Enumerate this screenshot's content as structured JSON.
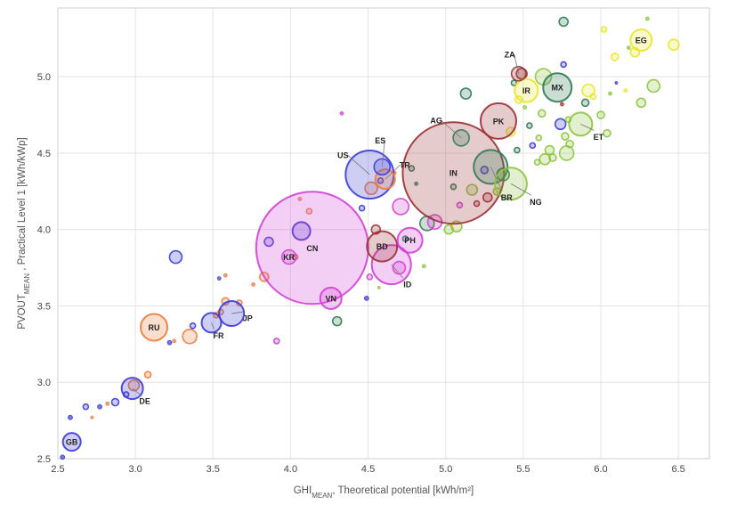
{
  "chart_data": {
    "type": "scatter",
    "title": "",
    "xlabel": {
      "prefix": "GHI",
      "sub": "MEAN",
      "suffix": ", Theoretical potential  [kWh/m²]"
    },
    "ylabel": {
      "prefix": "PVOUT",
      "sub": "MEAN",
      "suffix": " , Practical Level 1  [kWh/kWp]"
    },
    "xlim": [
      2.5,
      6.7
    ],
    "ylim": [
      2.5,
      5.45
    ],
    "xticks": [
      "2.5",
      "3.0",
      "3.5",
      "4.0",
      "4.5",
      "5.0",
      "5.5",
      "6.0",
      "6.5"
    ],
    "yticks": [
      "2.5",
      "3.0",
      "3.5",
      "4.0",
      "4.5",
      "5.0"
    ],
    "grid": true,
    "colors": {
      "blue": "#3b3bd6",
      "orange": "#ee7b3c",
      "magenta": "#d23fd6",
      "darkred": "#9b2f35",
      "darkgreen": "#2f7a55",
      "lightgreen": "#8cc43f",
      "yellow": "#e9e62a"
    },
    "labeled_points": [
      {
        "code": "GB",
        "x": 2.59,
        "y": 2.61,
        "r": 10,
        "color": "blue",
        "label": "GB"
      },
      {
        "code": "DE",
        "x": 2.98,
        "y": 2.96,
        "r": 12,
        "color": "blue",
        "label": "DE"
      },
      {
        "code": "RU",
        "x": 3.12,
        "y": 3.36,
        "r": 15,
        "color": "orange",
        "label": "RU"
      },
      {
        "code": "FR",
        "x": 3.49,
        "y": 3.39,
        "r": 11,
        "color": "blue",
        "label": "FR"
      },
      {
        "code": "JP",
        "x": 3.62,
        "y": 3.45,
        "r": 14,
        "color": "blue",
        "label": "JP"
      },
      {
        "code": "CN",
        "x": 4.14,
        "y": 3.88,
        "r": 63,
        "color": "magenta",
        "label": "CN"
      },
      {
        "code": "KR",
        "x": 3.99,
        "y": 3.82,
        "r": 8,
        "color": "magenta",
        "label": "KR"
      },
      {
        "code": "VN",
        "x": 4.26,
        "y": 3.55,
        "r": 12,
        "color": "magenta",
        "label": "VN"
      },
      {
        "code": "US",
        "x": 4.51,
        "y": 4.36,
        "r": 27,
        "color": "blue",
        "label": "US"
      },
      {
        "code": "ES",
        "x": 4.59,
        "y": 4.41,
        "r": 9,
        "color": "blue",
        "label": "ES"
      },
      {
        "code": "TR",
        "x": 4.61,
        "y": 4.33,
        "r": 11,
        "color": "orange",
        "label": "TR"
      },
      {
        "code": "BD",
        "x": 4.59,
        "y": 3.89,
        "r": 17,
        "color": "darkred",
        "label": "BD"
      },
      {
        "code": "PH",
        "x": 4.77,
        "y": 3.93,
        "r": 14,
        "color": "magenta",
        "label": "PH"
      },
      {
        "code": "ID",
        "x": 4.65,
        "y": 3.77,
        "r": 22,
        "color": "magenta",
        "label": "ID"
      },
      {
        "code": "IN",
        "x": 5.05,
        "y": 4.37,
        "r": 57,
        "color": "darkred",
        "label": "IN"
      },
      {
        "code": "AG",
        "x": 5.1,
        "y": 4.6,
        "r": 9,
        "color": "darkgreen",
        "label": "AG"
      },
      {
        "code": "PK",
        "x": 5.34,
        "y": 4.71,
        "r": 20,
        "color": "darkred",
        "label": "PK"
      },
      {
        "code": "BR",
        "x": 5.29,
        "y": 4.41,
        "r": 19,
        "color": "darkgreen",
        "label": "BR"
      },
      {
        "code": "NG",
        "x": 5.42,
        "y": 4.3,
        "r": 18,
        "color": "lightgreen",
        "label": "NG"
      },
      {
        "code": "ZA",
        "x": 5.47,
        "y": 5.02,
        "r": 8,
        "color": "darkred",
        "label": "ZA"
      },
      {
        "code": "IR",
        "x": 5.52,
        "y": 4.91,
        "r": 13,
        "color": "yellow",
        "label": "IR"
      },
      {
        "code": "MX",
        "x": 5.72,
        "y": 4.93,
        "r": 16,
        "color": "darkgreen",
        "label": "MX"
      },
      {
        "code": "ET",
        "x": 5.87,
        "y": 4.69,
        "r": 13,
        "color": "lightgreen",
        "label": "ET"
      },
      {
        "code": "EG",
        "x": 6.26,
        "y": 5.24,
        "r": 12,
        "color": "yellow",
        "label": "EG"
      }
    ],
    "points": [
      {
        "x": 2.53,
        "y": 2.51,
        "r": 2.5,
        "color": "blue"
      },
      {
        "x": 2.58,
        "y": 2.77,
        "r": 2.5,
        "color": "blue"
      },
      {
        "x": 2.68,
        "y": 2.84,
        "r": 3,
        "color": "blue"
      },
      {
        "x": 2.72,
        "y": 2.77,
        "r": 1.5,
        "color": "orange"
      },
      {
        "x": 2.77,
        "y": 2.84,
        "r": 2.5,
        "color": "blue"
      },
      {
        "x": 2.82,
        "y": 2.86,
        "r": 2,
        "color": "orange"
      },
      {
        "x": 2.87,
        "y": 2.87,
        "r": 4,
        "color": "blue"
      },
      {
        "x": 2.94,
        "y": 2.92,
        "r": 3,
        "color": "blue"
      },
      {
        "x": 2.99,
        "y": 2.98,
        "r": 6,
        "color": "orange"
      },
      {
        "x": 3.08,
        "y": 3.05,
        "r": 3.5,
        "color": "orange"
      },
      {
        "x": 3.22,
        "y": 3.26,
        "r": 2.5,
        "color": "blue"
      },
      {
        "x": 3.25,
        "y": 3.27,
        "r": 2,
        "color": "orange"
      },
      {
        "x": 3.26,
        "y": 3.82,
        "r": 7,
        "color": "blue"
      },
      {
        "x": 3.35,
        "y": 3.3,
        "r": 8,
        "color": "orange"
      },
      {
        "x": 3.37,
        "y": 3.37,
        "r": 3,
        "color": "blue"
      },
      {
        "x": 3.52,
        "y": 3.44,
        "r": 3,
        "color": "orange"
      },
      {
        "x": 3.55,
        "y": 3.46,
        "r": 3,
        "color": "orange"
      },
      {
        "x": 3.54,
        "y": 3.68,
        "r": 2,
        "color": "blue"
      },
      {
        "x": 3.58,
        "y": 3.53,
        "r": 4,
        "color": "orange"
      },
      {
        "x": 3.58,
        "y": 3.7,
        "r": 2,
        "color": "orange"
      },
      {
        "x": 3.67,
        "y": 3.52,
        "r": 3,
        "color": "orange"
      },
      {
        "x": 3.76,
        "y": 3.64,
        "r": 2,
        "color": "orange"
      },
      {
        "x": 3.83,
        "y": 3.69,
        "r": 5,
        "color": "orange"
      },
      {
        "x": 3.86,
        "y": 3.92,
        "r": 5,
        "color": "blue"
      },
      {
        "x": 3.91,
        "y": 3.27,
        "r": 3,
        "color": "magenta"
      },
      {
        "x": 4.07,
        "y": 3.99,
        "r": 10,
        "color": "blue"
      },
      {
        "x": 4.03,
        "y": 3.82,
        "r": 3,
        "color": "orange"
      },
      {
        "x": 4.06,
        "y": 4.2,
        "r": 2,
        "color": "orange"
      },
      {
        "x": 4.12,
        "y": 4.12,
        "r": 3,
        "color": "orange"
      },
      {
        "x": 4.3,
        "y": 3.4,
        "r": 5,
        "color": "darkgreen"
      },
      {
        "x": 4.33,
        "y": 4.76,
        "r": 2,
        "color": "magenta"
      },
      {
        "x": 4.46,
        "y": 4.14,
        "r": 3,
        "color": "blue"
      },
      {
        "x": 4.49,
        "y": 3.55,
        "r": 2.5,
        "color": "blue"
      },
      {
        "x": 4.51,
        "y": 3.69,
        "r": 3,
        "color": "magenta"
      },
      {
        "x": 4.52,
        "y": 4.27,
        "r": 7,
        "color": "orange"
      },
      {
        "x": 4.55,
        "y": 4.0,
        "r": 5,
        "color": "darkred"
      },
      {
        "x": 4.57,
        "y": 3.62,
        "r": 1.5,
        "color": "lightgreen"
      },
      {
        "x": 4.58,
        "y": 4.32,
        "r": 3,
        "color": "blue"
      },
      {
        "x": 4.67,
        "y": 4.37,
        "r": 2,
        "color": "orange"
      },
      {
        "x": 4.7,
        "y": 3.75,
        "r": 7,
        "color": "magenta"
      },
      {
        "x": 4.71,
        "y": 4.15,
        "r": 9,
        "color": "magenta"
      },
      {
        "x": 4.74,
        "y": 3.94,
        "r": 3,
        "color": "darkgreen"
      },
      {
        "x": 4.78,
        "y": 4.4,
        "r": 3,
        "color": "darkgreen"
      },
      {
        "x": 4.81,
        "y": 4.3,
        "r": 2,
        "color": "darkgreen"
      },
      {
        "x": 4.86,
        "y": 3.76,
        "r": 2,
        "color": "lightgreen"
      },
      {
        "x": 4.88,
        "y": 4.04,
        "r": 8,
        "color": "darkgreen"
      },
      {
        "x": 4.93,
        "y": 4.05,
        "r": 8,
        "color": "magenta"
      },
      {
        "x": 5.02,
        "y": 4.0,
        "r": 5,
        "color": "lightgreen"
      },
      {
        "x": 5.05,
        "y": 4.28,
        "r": 3,
        "color": "darkgreen"
      },
      {
        "x": 5.07,
        "y": 4.02,
        "r": 6,
        "color": "lightgreen"
      },
      {
        "x": 5.09,
        "y": 4.16,
        "r": 3,
        "color": "magenta"
      },
      {
        "x": 5.13,
        "y": 4.89,
        "r": 6,
        "color": "darkgreen"
      },
      {
        "x": 5.17,
        "y": 4.26,
        "r": 6,
        "color": "lightgreen"
      },
      {
        "x": 5.2,
        "y": 4.17,
        "r": 3,
        "color": "darkred"
      },
      {
        "x": 5.25,
        "y": 4.39,
        "r": 4,
        "color": "blue"
      },
      {
        "x": 5.27,
        "y": 4.21,
        "r": 5,
        "color": "darkred"
      },
      {
        "x": 5.33,
        "y": 4.25,
        "r": 4,
        "color": "lightgreen"
      },
      {
        "x": 5.37,
        "y": 4.36,
        "r": 7,
        "color": "darkgreen"
      },
      {
        "x": 5.42,
        "y": 4.64,
        "r": 5,
        "color": "yellow"
      },
      {
        "x": 5.44,
        "y": 4.96,
        "r": 3,
        "color": "darkgreen"
      },
      {
        "x": 5.46,
        "y": 4.52,
        "r": 3,
        "color": "darkgreen"
      },
      {
        "x": 5.47,
        "y": 4.85,
        "r": 4,
        "color": "yellow"
      },
      {
        "x": 5.49,
        "y": 5.02,
        "r": 6,
        "color": "darkred"
      },
      {
        "x": 5.51,
        "y": 4.8,
        "r": 2,
        "color": "lightgreen"
      },
      {
        "x": 5.54,
        "y": 4.68,
        "r": 3,
        "color": "darkgreen"
      },
      {
        "x": 5.56,
        "y": 4.55,
        "r": 3,
        "color": "blue"
      },
      {
        "x": 5.59,
        "y": 4.44,
        "r": 3,
        "color": "lightgreen"
      },
      {
        "x": 5.6,
        "y": 4.6,
        "r": 3,
        "color": "lightgreen"
      },
      {
        "x": 5.62,
        "y": 4.76,
        "r": 4,
        "color": "lightgreen"
      },
      {
        "x": 5.63,
        "y": 5.0,
        "r": 9,
        "color": "lightgreen"
      },
      {
        "x": 5.64,
        "y": 4.46,
        "r": 6,
        "color": "lightgreen"
      },
      {
        "x": 5.67,
        "y": 4.52,
        "r": 5,
        "color": "lightgreen"
      },
      {
        "x": 5.69,
        "y": 4.47,
        "r": 4,
        "color": "lightgreen"
      },
      {
        "x": 5.74,
        "y": 4.69,
        "r": 6,
        "color": "blue"
      },
      {
        "x": 5.75,
        "y": 4.82,
        "r": 2,
        "color": "darkred"
      },
      {
        "x": 5.76,
        "y": 5.08,
        "r": 3,
        "color": "blue"
      },
      {
        "x": 5.76,
        "y": 5.36,
        "r": 5,
        "color": "darkgreen"
      },
      {
        "x": 5.77,
        "y": 4.61,
        "r": 4,
        "color": "lightgreen"
      },
      {
        "x": 5.78,
        "y": 4.5,
        "r": 8,
        "color": "lightgreen"
      },
      {
        "x": 5.79,
        "y": 4.72,
        "r": 3,
        "color": "lightgreen"
      },
      {
        "x": 5.8,
        "y": 4.56,
        "r": 4,
        "color": "lightgreen"
      },
      {
        "x": 5.9,
        "y": 4.83,
        "r": 4,
        "color": "darkgreen"
      },
      {
        "x": 5.92,
        "y": 4.91,
        "r": 7,
        "color": "yellow"
      },
      {
        "x": 5.95,
        "y": 4.87,
        "r": 3,
        "color": "yellow"
      },
      {
        "x": 6.0,
        "y": 4.75,
        "r": 4,
        "color": "lightgreen"
      },
      {
        "x": 6.02,
        "y": 5.31,
        "r": 3,
        "color": "yellow"
      },
      {
        "x": 6.04,
        "y": 4.63,
        "r": 4,
        "color": "lightgreen"
      },
      {
        "x": 6.06,
        "y": 4.89,
        "r": 2,
        "color": "lightgreen"
      },
      {
        "x": 6.09,
        "y": 5.13,
        "r": 4,
        "color": "yellow"
      },
      {
        "x": 6.1,
        "y": 4.96,
        "r": 1.5,
        "color": "blue"
      },
      {
        "x": 6.16,
        "y": 4.91,
        "r": 2,
        "color": "yellow"
      },
      {
        "x": 6.18,
        "y": 5.19,
        "r": 2,
        "color": "lightgreen"
      },
      {
        "x": 6.22,
        "y": 5.16,
        "r": 5,
        "color": "yellow"
      },
      {
        "x": 6.26,
        "y": 4.83,
        "r": 5,
        "color": "lightgreen"
      },
      {
        "x": 6.3,
        "y": 5.38,
        "r": 2,
        "color": "lightgreen"
      },
      {
        "x": 6.34,
        "y": 4.94,
        "r": 7,
        "color": "lightgreen"
      },
      {
        "x": 6.47,
        "y": 5.21,
        "r": 6,
        "color": "yellow"
      }
    ]
  }
}
